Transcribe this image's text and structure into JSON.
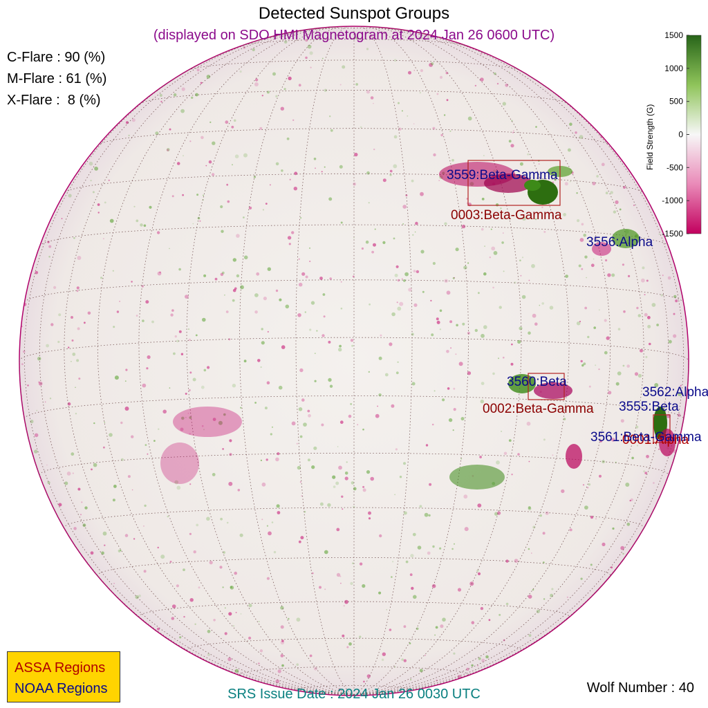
{
  "header": {
    "title": "Detected Sunspot Groups",
    "subtitle": "(displayed on SDO HMI Magnetogram at 2024 Jan 26 0600 UTC)"
  },
  "flare_probabilities": [
    {
      "label": "C-Flare : 90 (%)"
    },
    {
      "label": "M-Flare : 61 (%)"
    },
    {
      "label": "X-Flare :  8 (%)"
    }
  ],
  "colorbar": {
    "title": "Field Strength (G)",
    "ticks": [
      "1500",
      "1000",
      "500",
      "0",
      "-500",
      "-1000",
      "-1500"
    ],
    "colors": {
      "positive": "#2e7d0a",
      "zero": "#f7f7f7",
      "negative": "#c2005e"
    }
  },
  "regions": {
    "noaa": [
      {
        "label": "3559:Beta-Gamma"
      },
      {
        "label": "3556:Alpha"
      },
      {
        "label": "3560:Beta"
      },
      {
        "label": "3562:Alpha"
      },
      {
        "label": "3555:Beta"
      },
      {
        "label": "3561:Beta-Gamma"
      }
    ],
    "assa": [
      {
        "label": "0003:Beta-Gamma"
      },
      {
        "label": "0002:Beta-Gamma"
      },
      {
        "label": "0001:Alpha"
      }
    ]
  },
  "legend": {
    "assa": "ASSA Regions",
    "noaa": "NOAA Regions",
    "assa_color": "#b00000",
    "noaa_color": "#0a0a8a"
  },
  "footer": {
    "srs": "SRS Issue Date : 2024 Jan 26 0030 UTC",
    "wolf": "Wolf Number : 40"
  }
}
